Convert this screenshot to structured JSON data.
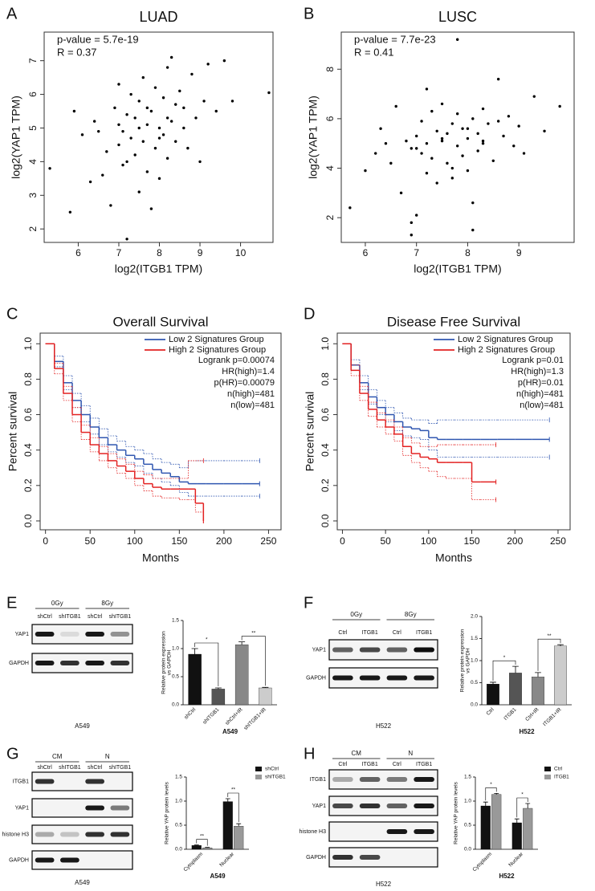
{
  "panel_labels": [
    "A",
    "B",
    "C",
    "D",
    "E",
    "F",
    "G",
    "H"
  ],
  "chart_data": [
    {
      "type": "scatter",
      "title": "LUAD",
      "annotations": [
        "p-value = 5.7e-19",
        "R = 0.37"
      ],
      "xlabel": "log2(ITGB1 TPM)",
      "ylabel": "log2(YAP1 TPM)",
      "color": "#000000",
      "xlim": [
        5.16,
        10.8
      ],
      "ylim": [
        1.6,
        7.85
      ],
      "xticks": [
        6,
        7,
        8,
        9,
        10
      ],
      "yticks": [
        2,
        3,
        4,
        5,
        6,
        7
      ],
      "x": [
        5.3,
        5.8,
        5.9,
        6.1,
        6.3,
        6.4,
        6.6,
        6.7,
        6.8,
        6.9,
        7.0,
        7.0,
        7.1,
        7.1,
        7.2,
        7.2,
        7.3,
        7.3,
        7.4,
        7.4,
        7.5,
        7.5,
        7.6,
        7.6,
        7.7,
        7.7,
        7.8,
        7.8,
        7.9,
        7.9,
        8.0,
        8.0,
        8.1,
        8.1,
        8.2,
        8.2,
        8.3,
        8.3,
        8.4,
        8.4,
        8.5,
        8.6,
        8.7,
        8.8,
        8.9,
        9.0,
        9.1,
        9.2,
        9.4,
        9.6,
        9.8,
        10.7,
        7.2,
        7.5,
        7.7,
        8.0,
        8.2,
        6.5,
        7.0,
        8.6
      ],
      "values": [
        3.8,
        2.5,
        5.5,
        4.8,
        3.4,
        5.2,
        3.6,
        4.3,
        2.7,
        5.6,
        4.5,
        6.3,
        4.9,
        3.9,
        1.7,
        5.4,
        4.7,
        6.0,
        4.2,
        5.3,
        3.1,
        5.8,
        4.6,
        6.5,
        5.1,
        3.7,
        2.6,
        5.5,
        4.4,
        6.2,
        5.0,
        3.5,
        5.9,
        4.8,
        6.8,
        4.1,
        5.2,
        7.1,
        4.6,
        5.7,
        6.1,
        5.0,
        4.4,
        6.6,
        5.3,
        4.0,
        5.8,
        6.9,
        5.5,
        7.0,
        5.8,
        6.05,
        4.0,
        5.0,
        5.6,
        4.7,
        5.3,
        4.9,
        5.1,
        5.6
      ]
    },
    {
      "type": "scatter",
      "title": "LUSC",
      "annotations": [
        "p-value = 7.7e-23",
        "R = 0.41"
      ],
      "xlabel": "log2(ITGB1 TPM)",
      "ylabel": "log2(YAP1 TPM)",
      "color": "#000000",
      "xlim": [
        5.53,
        10.08
      ],
      "ylim": [
        1.0,
        9.5
      ],
      "xticks": [
        6,
        7,
        8,
        9
      ],
      "yticks": [
        2,
        4,
        6,
        8
      ],
      "x": [
        5.7,
        6.0,
        6.2,
        6.3,
        6.5,
        6.6,
        6.7,
        6.8,
        6.9,
        6.9,
        7.0,
        7.0,
        7.1,
        7.1,
        7.2,
        7.2,
        7.3,
        7.3,
        7.4,
        7.4,
        7.5,
        7.5,
        7.6,
        7.6,
        7.7,
        7.7,
        7.8,
        7.8,
        7.9,
        7.9,
        8.0,
        8.0,
        8.1,
        8.1,
        8.2,
        8.2,
        8.3,
        8.3,
        8.4,
        8.5,
        8.6,
        8.7,
        8.8,
        8.9,
        9.0,
        9.1,
        9.3,
        9.5,
        9.8,
        7.8,
        6.9,
        8.1,
        8.6,
        7.0,
        7.5,
        8.0,
        7.2,
        7.7,
        8.3,
        6.4
      ],
      "values": [
        2.4,
        3.9,
        4.6,
        5.6,
        4.2,
        6.5,
        3.0,
        5.1,
        1.3,
        4.8,
        5.3,
        2.1,
        4.6,
        5.9,
        3.8,
        5.0,
        6.3,
        4.4,
        5.5,
        3.4,
        5.1,
        6.6,
        4.2,
        5.4,
        3.6,
        5.8,
        4.9,
        6.2,
        4.5,
        5.6,
        5.2,
        3.9,
        6.0,
        1.5,
        5.4,
        4.7,
        6.4,
        5.0,
        5.8,
        4.3,
        7.6,
        5.3,
        6.1,
        4.9,
        5.7,
        4.6,
        6.9,
        5.5,
        6.5,
        9.2,
        1.8,
        2.6,
        5.9,
        4.8,
        5.2,
        5.6,
        7.2,
        4.0,
        5.1,
        5.0
      ]
    },
    {
      "type": "survival",
      "title": "Overall Survival",
      "xlabel": "Months",
      "ylabel": "Percent survival",
      "stats": [
        "Logrank p=0.00074",
        "HR(high)=1.4",
        "p(HR)=0.00079",
        "n(high)=481",
        "n(low)=481"
      ],
      "xlim": [
        -6,
        264
      ],
      "ylim": [
        -0.05,
        1.06
      ],
      "xticks": [
        0,
        50,
        100,
        150,
        200,
        250
      ],
      "yticks": [
        {
          "value": 0,
          "label": "0.0"
        },
        0.2,
        0.4,
        0.6,
        0.8,
        {
          "value": 1,
          "label": "1.0"
        }
      ],
      "series": [
        {
          "name": "Low 2 Signatures Group",
          "color": "#2f56b0",
          "x": [
            0,
            10,
            20,
            30,
            40,
            50,
            60,
            70,
            80,
            90,
            100,
            110,
            120,
            130,
            140,
            150,
            160,
            170,
            180,
            200,
            220,
            240
          ],
          "values": [
            1.0,
            0.9,
            0.78,
            0.68,
            0.6,
            0.53,
            0.47,
            0.43,
            0.4,
            0.37,
            0.35,
            0.32,
            0.29,
            0.27,
            0.25,
            0.22,
            0.21,
            0.21,
            0.21,
            0.21,
            0.21,
            0.21
          ],
          "upper": [
            1.0,
            0.93,
            0.82,
            0.72,
            0.65,
            0.58,
            0.52,
            0.48,
            0.45,
            0.42,
            0.4,
            0.38,
            0.35,
            0.33,
            0.32,
            0.3,
            0.34,
            0.34,
            0.34,
            0.34,
            0.34,
            0.34
          ],
          "lower": [
            1.0,
            0.87,
            0.74,
            0.64,
            0.56,
            0.49,
            0.43,
            0.39,
            0.36,
            0.33,
            0.31,
            0.27,
            0.24,
            0.22,
            0.2,
            0.16,
            0.14,
            0.14,
            0.14,
            0.14,
            0.14,
            0.14
          ]
        },
        {
          "name": "High 2 Signatures Group",
          "color": "#e32222",
          "x": [
            0,
            10,
            20,
            30,
            40,
            50,
            60,
            70,
            80,
            90,
            100,
            110,
            120,
            130,
            140,
            150,
            160,
            168,
            177
          ],
          "values": [
            1.0,
            0.86,
            0.72,
            0.6,
            0.5,
            0.43,
            0.38,
            0.34,
            0.31,
            0.28,
            0.24,
            0.21,
            0.19,
            0.18,
            0.18,
            0.18,
            0.18,
            0.1,
            0.0
          ],
          "upper": [
            1.0,
            0.89,
            0.76,
            0.64,
            0.54,
            0.47,
            0.42,
            0.38,
            0.35,
            0.32,
            0.28,
            0.26,
            0.24,
            0.24,
            0.24,
            0.24,
            0.34,
            0.34,
            0.34
          ],
          "lower": [
            1.0,
            0.83,
            0.68,
            0.56,
            0.46,
            0.39,
            0.34,
            0.3,
            0.27,
            0.24,
            0.2,
            0.17,
            0.14,
            0.13,
            0.13,
            0.12,
            0.12,
            0.05,
            0.0
          ]
        }
      ]
    },
    {
      "type": "survival",
      "title": "Disease Free Survival",
      "xlabel": "Months",
      "ylabel": "Percent survival",
      "stats": [
        "Logrank p=0.01",
        "HR(high)=1.3",
        "p(HR)=0.01",
        "n(high)=481",
        "n(low)=481"
      ],
      "xlim": [
        -6,
        264
      ],
      "ylim": [
        -0.05,
        1.06
      ],
      "xticks": [
        0,
        50,
        100,
        150,
        200,
        250
      ],
      "yticks": [
        {
          "value": 0,
          "label": "0.0"
        },
        0.2,
        0.4,
        0.6,
        0.8,
        {
          "value": 1,
          "label": "1.0"
        }
      ],
      "series": [
        {
          "name": "Low 2 Signatures Group",
          "color": "#2f56b0",
          "x": [
            0,
            10,
            20,
            30,
            40,
            50,
            60,
            70,
            80,
            90,
            100,
            110,
            120,
            130,
            140,
            150,
            160,
            170,
            180,
            200,
            220,
            240
          ],
          "values": [
            1.0,
            0.88,
            0.78,
            0.7,
            0.64,
            0.6,
            0.56,
            0.53,
            0.52,
            0.51,
            0.47,
            0.46,
            0.46,
            0.46,
            0.46,
            0.46,
            0.46,
            0.46,
            0.46,
            0.46,
            0.46,
            0.46
          ],
          "upper": [
            1.0,
            0.91,
            0.82,
            0.74,
            0.68,
            0.64,
            0.61,
            0.58,
            0.57,
            0.57,
            0.55,
            0.57,
            0.57,
            0.57,
            0.57,
            0.57,
            0.57,
            0.57,
            0.57,
            0.57,
            0.57,
            0.57
          ],
          "lower": [
            1.0,
            0.85,
            0.74,
            0.66,
            0.6,
            0.56,
            0.51,
            0.48,
            0.47,
            0.46,
            0.4,
            0.36,
            0.36,
            0.36,
            0.36,
            0.36,
            0.36,
            0.36,
            0.36,
            0.36,
            0.36,
            0.36
          ]
        },
        {
          "name": "High 2 Signatures Group",
          "color": "#e32222",
          "x": [
            0,
            10,
            20,
            30,
            40,
            50,
            60,
            70,
            80,
            90,
            100,
            110,
            120,
            130,
            140,
            150,
            160,
            178
          ],
          "values": [
            1.0,
            0.85,
            0.72,
            0.63,
            0.57,
            0.53,
            0.49,
            0.42,
            0.38,
            0.36,
            0.35,
            0.33,
            0.33,
            0.33,
            0.33,
            0.22,
            0.22,
            0.22
          ],
          "upper": [
            1.0,
            0.88,
            0.76,
            0.67,
            0.61,
            0.57,
            0.53,
            0.47,
            0.44,
            0.42,
            0.42,
            0.43,
            0.43,
            0.43,
            0.43,
            0.43,
            0.43,
            0.43
          ],
          "lower": [
            1.0,
            0.82,
            0.68,
            0.59,
            0.53,
            0.49,
            0.45,
            0.37,
            0.33,
            0.3,
            0.28,
            0.25,
            0.24,
            0.24,
            0.24,
            0.12,
            0.12,
            0.12
          ]
        }
      ]
    },
    {
      "type": "bar",
      "title": "A549",
      "ylabel": [
        "Relative protein expression",
        "vs GAPDH"
      ],
      "categories": [
        "shCtrl",
        "shITGB1",
        "shCtrl+IR",
        "shITGB1+IR"
      ],
      "values": [
        0.9,
        0.28,
        1.07,
        0.3
      ],
      "errors": [
        0.1,
        0.02,
        0.05,
        0.01
      ],
      "colors": [
        "#111111",
        "#555555",
        "#888888",
        "#cccccc"
      ],
      "significance": [
        "*",
        "**"
      ],
      "ylim": [
        0,
        1.5
      ],
      "yticks": [
        {
          "value": 0,
          "label": "0.0"
        },
        0.5,
        {
          "value": 1,
          "label": "1.0"
        },
        1.5
      ]
    },
    {
      "type": "bar",
      "title": "H522",
      "ylabel": [
        "Relative protein expression",
        "vs GAPDH"
      ],
      "categories": [
        "Ctrl",
        "ITGB1",
        "Ctrl+IR",
        "ITGB1+IR"
      ],
      "values": [
        0.47,
        0.72,
        0.63,
        1.33
      ],
      "errors": [
        0.04,
        0.15,
        0.1,
        0.03
      ],
      "colors": [
        "#111111",
        "#555555",
        "#888888",
        "#cccccc"
      ],
      "significance": [
        "*",
        "**"
      ],
      "ylim": [
        0,
        2
      ],
      "yticks": [
        {
          "value": 0,
          "label": "0.0"
        },
        0.5,
        {
          "value": 1,
          "label": "1.0"
        },
        1.5,
        {
          "value": 2,
          "label": "2.0"
        }
      ]
    },
    {
      "type": "bar",
      "title": "A549",
      "ylabel": [
        "Relative YAP protein levels"
      ],
      "categories": [
        "Cytoplasm",
        "Nuclear"
      ],
      "significance": [
        "**",
        "**"
      ],
      "series": [
        {
          "name": "shCtrl",
          "color": "#111111",
          "values": [
            0.08,
            0.99
          ],
          "errors": [
            0.01,
            0.06
          ]
        },
        {
          "name": "shITGB1",
          "color": "#999999",
          "values": [
            0.03,
            0.48
          ],
          "errors": [
            0.01,
            0.05
          ]
        }
      ],
      "ylim": [
        0,
        1.5
      ],
      "yticks": [
        {
          "value": 0,
          "label": "0.0"
        },
        0.5,
        {
          "value": 1,
          "label": "1.0"
        },
        1.5
      ]
    },
    {
      "type": "bar",
      "title": "H522",
      "ylabel": [
        "Relative YAP protein levels"
      ],
      "categories": [
        "Cytoplasm",
        "Nuclear"
      ],
      "significance": [
        "*",
        "*"
      ],
      "series": [
        {
          "name": "Ctrl",
          "color": "#111111",
          "values": [
            0.9,
            0.55
          ],
          "errors": [
            0.08,
            0.08
          ]
        },
        {
          "name": "ITGB1",
          "color": "#999999",
          "values": [
            1.14,
            0.85
          ],
          "errors": [
            0.02,
            0.1
          ]
        }
      ],
      "ylim": [
        0,
        1.5
      ],
      "yticks": [
        {
          "value": 0,
          "label": "0.0"
        },
        0.5,
        {
          "value": 1,
          "label": "1.0"
        },
        1.5
      ]
    }
  ],
  "blots": [
    {
      "groups": [
        "0Gy",
        "8Gy"
      ],
      "lanes": [
        "shCtrl",
        "shITGB1",
        "shCtrl",
        "shITGB1"
      ],
      "rows": [
        "YAP1",
        "GAPDH"
      ],
      "cell_line": "A549"
    },
    {
      "groups": [
        "0Gy",
        "8Gy"
      ],
      "lanes": [
        "Ctrl",
        "ITGB1",
        "Ctrl",
        "ITGB1"
      ],
      "rows": [
        "YAP1",
        "GAPDH"
      ],
      "cell_line": "H522"
    },
    {
      "groups": [
        "CM",
        "N"
      ],
      "lanes": [
        "shCtrl",
        "shITGB1",
        "shCtrl",
        "shITGB1"
      ],
      "rows": [
        "ITGB1",
        "YAP1",
        "histone H3",
        "GAPDH"
      ],
      "cell_line": "A549"
    },
    {
      "groups": [
        "CM",
        "N"
      ],
      "lanes": [
        "Ctrl",
        "ITGB1",
        "Ctrl",
        "ITGB1"
      ],
      "rows": [
        "ITGB1",
        "YAP1",
        "histone H3",
        "GAPDH"
      ],
      "cell_line": "H522"
    }
  ]
}
